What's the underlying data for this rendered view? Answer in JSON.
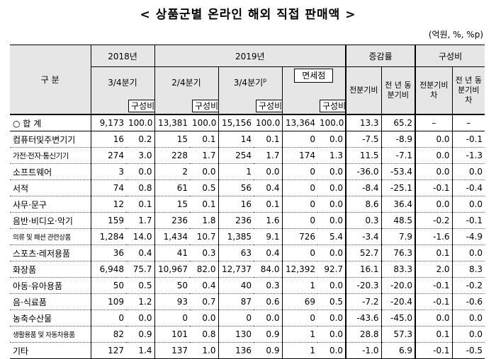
{
  "title": "< 상품군별 온라인 해외 직접 판매액 >",
  "unit": "(억원, %, %p)",
  "header": {
    "category": "구 분",
    "y2018": "2018년",
    "y2019": "2019년",
    "growth": "증감률",
    "composition": "구성비",
    "q3_2018": "3/4분기",
    "q2_2019": "2/4분기",
    "q3_2019": "3/4분기",
    "q3_2019_mark": "p",
    "dutyfree": "면세점",
    "qoq": "전분기비",
    "yoy": "전 년 동분기비",
    "comp_qoq": "전분기비차",
    "comp_yoy": "전 년 동분기비차",
    "share": "구성비"
  },
  "rows": [
    {
      "label": "○ 합 계",
      "v": [
        "9,173",
        "100.0",
        "13,381",
        "100.0",
        "15,156",
        "100.0",
        "13,364",
        "100.0",
        "13.3",
        "65.2",
        "–",
        "–"
      ]
    },
    {
      "label": "컴퓨터및주변기기",
      "v": [
        "16",
        "0.2",
        "15",
        "0.1",
        "14",
        "0.1",
        "0",
        "0.0",
        "-7.5",
        "-8.9",
        "0.0",
        "-0.1"
      ]
    },
    {
      "label": "가전·전자·통신기기",
      "v": [
        "274",
        "3.0",
        "228",
        "1.7",
        "254",
        "1.7",
        "174",
        "1.3",
        "11.5",
        "-7.1",
        "0.0",
        "-1.3"
      ]
    },
    {
      "label": "소프트웨어",
      "v": [
        "3",
        "0.0",
        "2",
        "0.0",
        "1",
        "0.0",
        "0",
        "0.0",
        "-36.0",
        "-53.4",
        "0.0",
        "0.0"
      ]
    },
    {
      "label": "서적",
      "v": [
        "74",
        "0.8",
        "61",
        "0.5",
        "56",
        "0.4",
        "0",
        "0.0",
        "-8.4",
        "-25.1",
        "-0.1",
        "-0.4"
      ]
    },
    {
      "label": "사무·문구",
      "v": [
        "12",
        "0.1",
        "15",
        "0.1",
        "16",
        "0.1",
        "0",
        "0.0",
        "8.6",
        "36.4",
        "0.0",
        "0.0"
      ]
    },
    {
      "label": "음반·비디오·악기",
      "v": [
        "159",
        "1.7",
        "236",
        "1.8",
        "236",
        "1.6",
        "0",
        "0.0",
        "0.3",
        "48.5",
        "-0.2",
        "-0.1"
      ]
    },
    {
      "label": "의류 및 패션 관련상품",
      "v": [
        "1,284",
        "14.0",
        "1,434",
        "10.7",
        "1,385",
        "9.1",
        "726",
        "5.4",
        "-3.4",
        "7.9",
        "-1.6",
        "-4.9"
      ]
    },
    {
      "label": "스포츠·레저용품",
      "v": [
        "36",
        "0.4",
        "41",
        "0.3",
        "63",
        "0.4",
        "0",
        "0.0",
        "52.7",
        "76.3",
        "0.1",
        "0.0"
      ]
    },
    {
      "label": "화장품",
      "v": [
        "6,948",
        "75.7",
        "10,967",
        "82.0",
        "12,737",
        "84.0",
        "12,392",
        "92.7",
        "16.1",
        "83.3",
        "2.0",
        "8.3"
      ]
    },
    {
      "label": "아동·유아용품",
      "v": [
        "50",
        "0.5",
        "50",
        "0.4",
        "40",
        "0.3",
        "1",
        "0.0",
        "-20.3",
        "-20.0",
        "-0.1",
        "-0.2"
      ]
    },
    {
      "label": "음·식료품",
      "v": [
        "109",
        "1.2",
        "93",
        "0.7",
        "87",
        "0.6",
        "69",
        "0.5",
        "-7.2",
        "-20.4",
        "-0.1",
        "-0.6"
      ]
    },
    {
      "label": "농축수산물",
      "v": [
        "0",
        "0.0",
        "0",
        "0.0",
        "0",
        "0.0",
        "0",
        "0.0",
        "-43.6",
        "-45.0",
        "0.0",
        "0.0"
      ]
    },
    {
      "label": "생활용품 및 자동차용품",
      "v": [
        "82",
        "0.9",
        "101",
        "0.8",
        "130",
        "0.9",
        "1",
        "0.0",
        "28.8",
        "57.3",
        "0.1",
        "0.0"
      ]
    },
    {
      "label": "기타",
      "v": [
        "127",
        "1.4",
        "137",
        "1.0",
        "136",
        "0.9",
        "1",
        "0.0",
        "-1.0",
        "6.9",
        "-0.1",
        "-0.5"
      ]
    }
  ]
}
